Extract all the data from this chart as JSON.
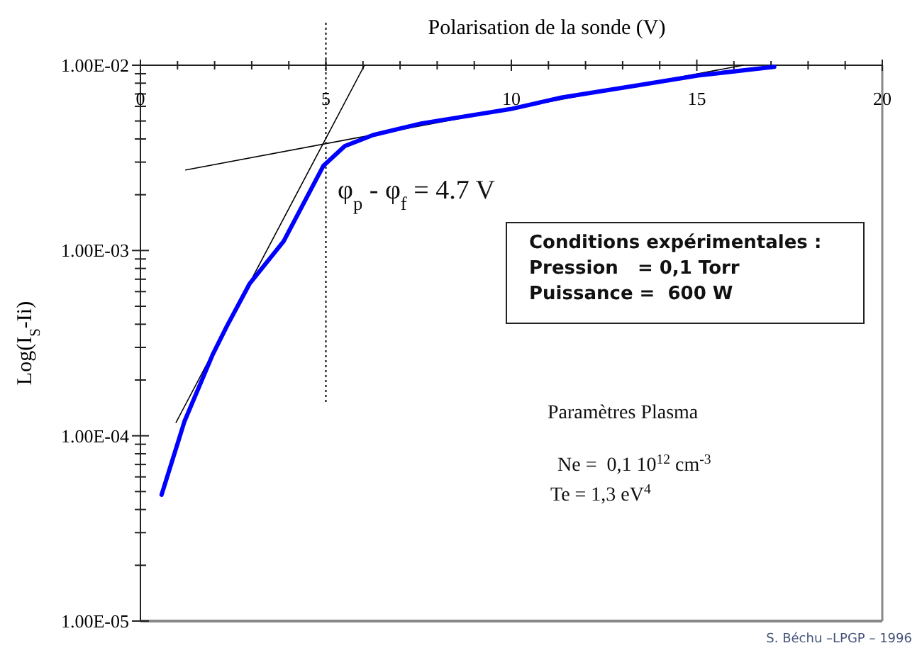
{
  "chart_data": {
    "type": "line",
    "xlabel": "Polarisation de la sonde (V)",
    "ylabel": "Log(I$_{S}$-Ii)",
    "log": "y",
    "grid": false,
    "marker": "none",
    "line_style": "solid",
    "xlim": [
      0,
      20
    ],
    "xticks": [
      0,
      {
        "value": 1,
        "label": null
      },
      {
        "value": 2,
        "label": null
      },
      {
        "value": 3,
        "label": null
      },
      {
        "value": 4,
        "label": null
      },
      5,
      {
        "value": 6,
        "label": null
      },
      {
        "value": 7,
        "label": null
      },
      {
        "value": 8,
        "label": null
      },
      {
        "value": 9,
        "label": null
      },
      10,
      {
        "value": 11,
        "label": null
      },
      {
        "value": 12,
        "label": null
      },
      {
        "value": 13,
        "label": null
      },
      {
        "value": 14,
        "label": null
      },
      15,
      {
        "value": 16,
        "label": null
      },
      {
        "value": 17,
        "label": null
      },
      {
        "value": 18,
        "label": null
      },
      {
        "value": 19,
        "label": null
      },
      20
    ],
    "ylim": [
      1e-05,
      0.01
    ],
    "yticks": [
      {
        "value": 1e-05,
        "label": "1.00E-05"
      },
      {
        "value": 2e-05,
        "label": null
      },
      {
        "value": 3e-05,
        "label": null
      },
      {
        "value": 4e-05,
        "label": null
      },
      {
        "value": 5e-05,
        "label": null
      },
      {
        "value": 6e-05,
        "label": null
      },
      {
        "value": 7e-05,
        "label": null
      },
      {
        "value": 8e-05,
        "label": null
      },
      {
        "value": 9e-05,
        "label": null
      },
      {
        "value": 0.0001,
        "label": "1.00E-04"
      },
      {
        "value": 0.0002,
        "label": null
      },
      {
        "value": 0.0003,
        "label": null
      },
      {
        "value": 0.0004,
        "label": null
      },
      {
        "value": 0.0005,
        "label": null
      },
      {
        "value": 0.0006,
        "label": null
      },
      {
        "value": 0.0007,
        "label": null
      },
      {
        "value": 0.0008,
        "label": null
      },
      {
        "value": 0.0009,
        "label": null
      },
      {
        "value": 0.001,
        "label": "1.00E-03"
      },
      {
        "value": 0.002,
        "label": null
      },
      {
        "value": 0.003,
        "label": null
      },
      {
        "value": 0.004,
        "label": null
      },
      {
        "value": 0.005,
        "label": null
      },
      {
        "value": 0.006,
        "label": null
      },
      {
        "value": 0.007,
        "label": null
      },
      {
        "value": 0.008,
        "label": null
      },
      {
        "value": 0.009,
        "label": null
      },
      {
        "value": 0.01,
        "label": "1.00E-02"
      }
    ],
    "series": [
      {
        "color": "#0000ff",
        "x": [
          0.57,
          1.19,
          1.95,
          2.33,
          2.94,
          3.86,
          4.93,
          5.51,
          6.27,
          7.57,
          9.98,
          11.36,
          13.42,
          15.03,
          17.09
        ],
        "values": [
          4.8e-05,
          0.00012,
          0.000275,
          0.00039,
          0.00066,
          0.00112,
          0.00286,
          0.00366,
          0.0042,
          0.00485,
          0.0058,
          0.0067,
          0.0078,
          0.0088,
          0.0098
        ]
      },
      {
        "color": "#000000",
        "x": [
          0.96,
          6.04
        ],
        "values": [
          0.000118,
          0.01
        ]
      },
      {
        "color": "#000000",
        "x": [
          1.22,
          16.25
        ],
        "values": [
          0.00272,
          0.01
        ]
      }
    ],
    "ref_lines": [
      {
        "axis": "x",
        "value": 5,
        "color": "#000000",
        "line_style": "dotted"
      }
    ],
    "annotations": [
      "φ$_{p}$ - φ$_{f}$ = 4.7 V",
      "Conditions expérimentales :",
      "Pression   = 0,1 Torr",
      "Puissance =  600 W",
      "Paramètres Plasma",
      "Ne =  0,1 10$^{12}$ cm$^{-3}$",
      "Te = 1,3 eV$^{4}$",
      "S. Béchu –LPGP – 1996"
    ]
  }
}
